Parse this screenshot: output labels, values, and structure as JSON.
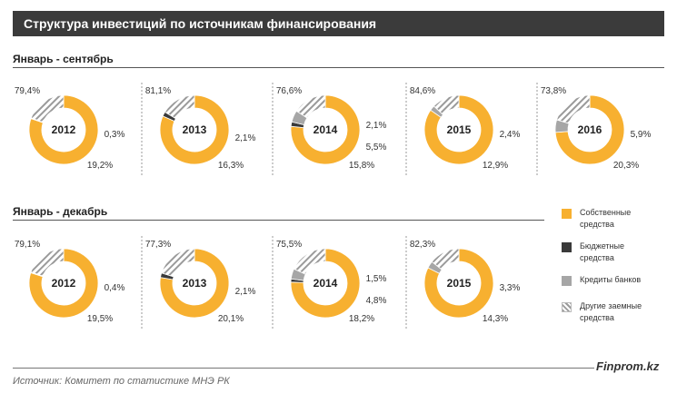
{
  "header": {
    "title": "Структура инвестиций по источникам финансирования"
  },
  "colors": {
    "own": "#f7b030",
    "budget": "#3a3a3a",
    "bank": "#a6a6a6",
    "other_stripe": "#9a9a9a",
    "other_bg": "#ffffff"
  },
  "legend": [
    {
      "key": "own",
      "label_line1": "Собственные",
      "label_line2": "средства"
    },
    {
      "key": "budget",
      "label_line1": "Бюджетные",
      "label_line2": "средства"
    },
    {
      "key": "bank",
      "label_line1": "Кредиты банков",
      "label_line2": ""
    },
    {
      "key": "other",
      "label_line1": "Другие заемные",
      "label_line2": "средства"
    }
  ],
  "footer": {
    "source": "Источник:  Комитет по статистике МНЭ РК",
    "brand": "Finprom.kz"
  },
  "chart_data": [
    {
      "type": "pie",
      "title": "Январь  - сентябрь",
      "series_order": [
        "own",
        "budget",
        "bank",
        "other"
      ],
      "donuts": [
        {
          "year": "2012",
          "values": [
            79.4,
            0.0,
            0.3,
            19.2
          ],
          "labels": {
            "own": "79,4%",
            "bank": "0,3%",
            "other": "19,2%"
          }
        },
        {
          "year": "2013",
          "values": [
            81.1,
            2.1,
            0.0,
            16.3
          ],
          "labels": {
            "own": "81,1%",
            "budget": "2,1%",
            "other": "16,3%"
          }
        },
        {
          "year": "2014",
          "values": [
            76.6,
            2.1,
            5.5,
            15.8
          ],
          "labels": {
            "own": "76,6%",
            "budget": "2,1%",
            "bank": "5,5%",
            "other": "15,8%"
          }
        },
        {
          "year": "2015",
          "values": [
            84.6,
            0.0,
            2.4,
            12.9
          ],
          "labels": {
            "own": "84,6%",
            "bank": "2,4%",
            "other": "12,9%"
          }
        },
        {
          "year": "2016",
          "values": [
            73.8,
            0.0,
            5.9,
            20.3
          ],
          "labels": {
            "own": "73,8%",
            "bank": "5,9%",
            "other": "20,3%"
          }
        }
      ]
    },
    {
      "type": "pie",
      "title": "Январь  - декабрь",
      "series_order": [
        "own",
        "budget",
        "bank",
        "other"
      ],
      "donuts": [
        {
          "year": "2012",
          "values": [
            79.1,
            0.0,
            0.4,
            19.5
          ],
          "labels": {
            "own": "79,1%",
            "bank": "0,4%",
            "other": "19,5%"
          }
        },
        {
          "year": "2013",
          "values": [
            77.3,
            2.1,
            0.0,
            20.1
          ],
          "labels": {
            "own": "77,3%",
            "budget": "2,1%",
            "other": "20,1%"
          }
        },
        {
          "year": "2014",
          "values": [
            75.5,
            1.5,
            4.8,
            18.2
          ],
          "labels": {
            "own": "75,5%",
            "budget": "1,5%",
            "bank": "4,8%",
            "other": "18,2%"
          }
        },
        {
          "year": "2015",
          "values": [
            82.3,
            0.0,
            3.3,
            14.3
          ],
          "labels": {
            "own": "82,3%",
            "bank": "3,3%",
            "other": "14,3%"
          }
        }
      ]
    }
  ]
}
